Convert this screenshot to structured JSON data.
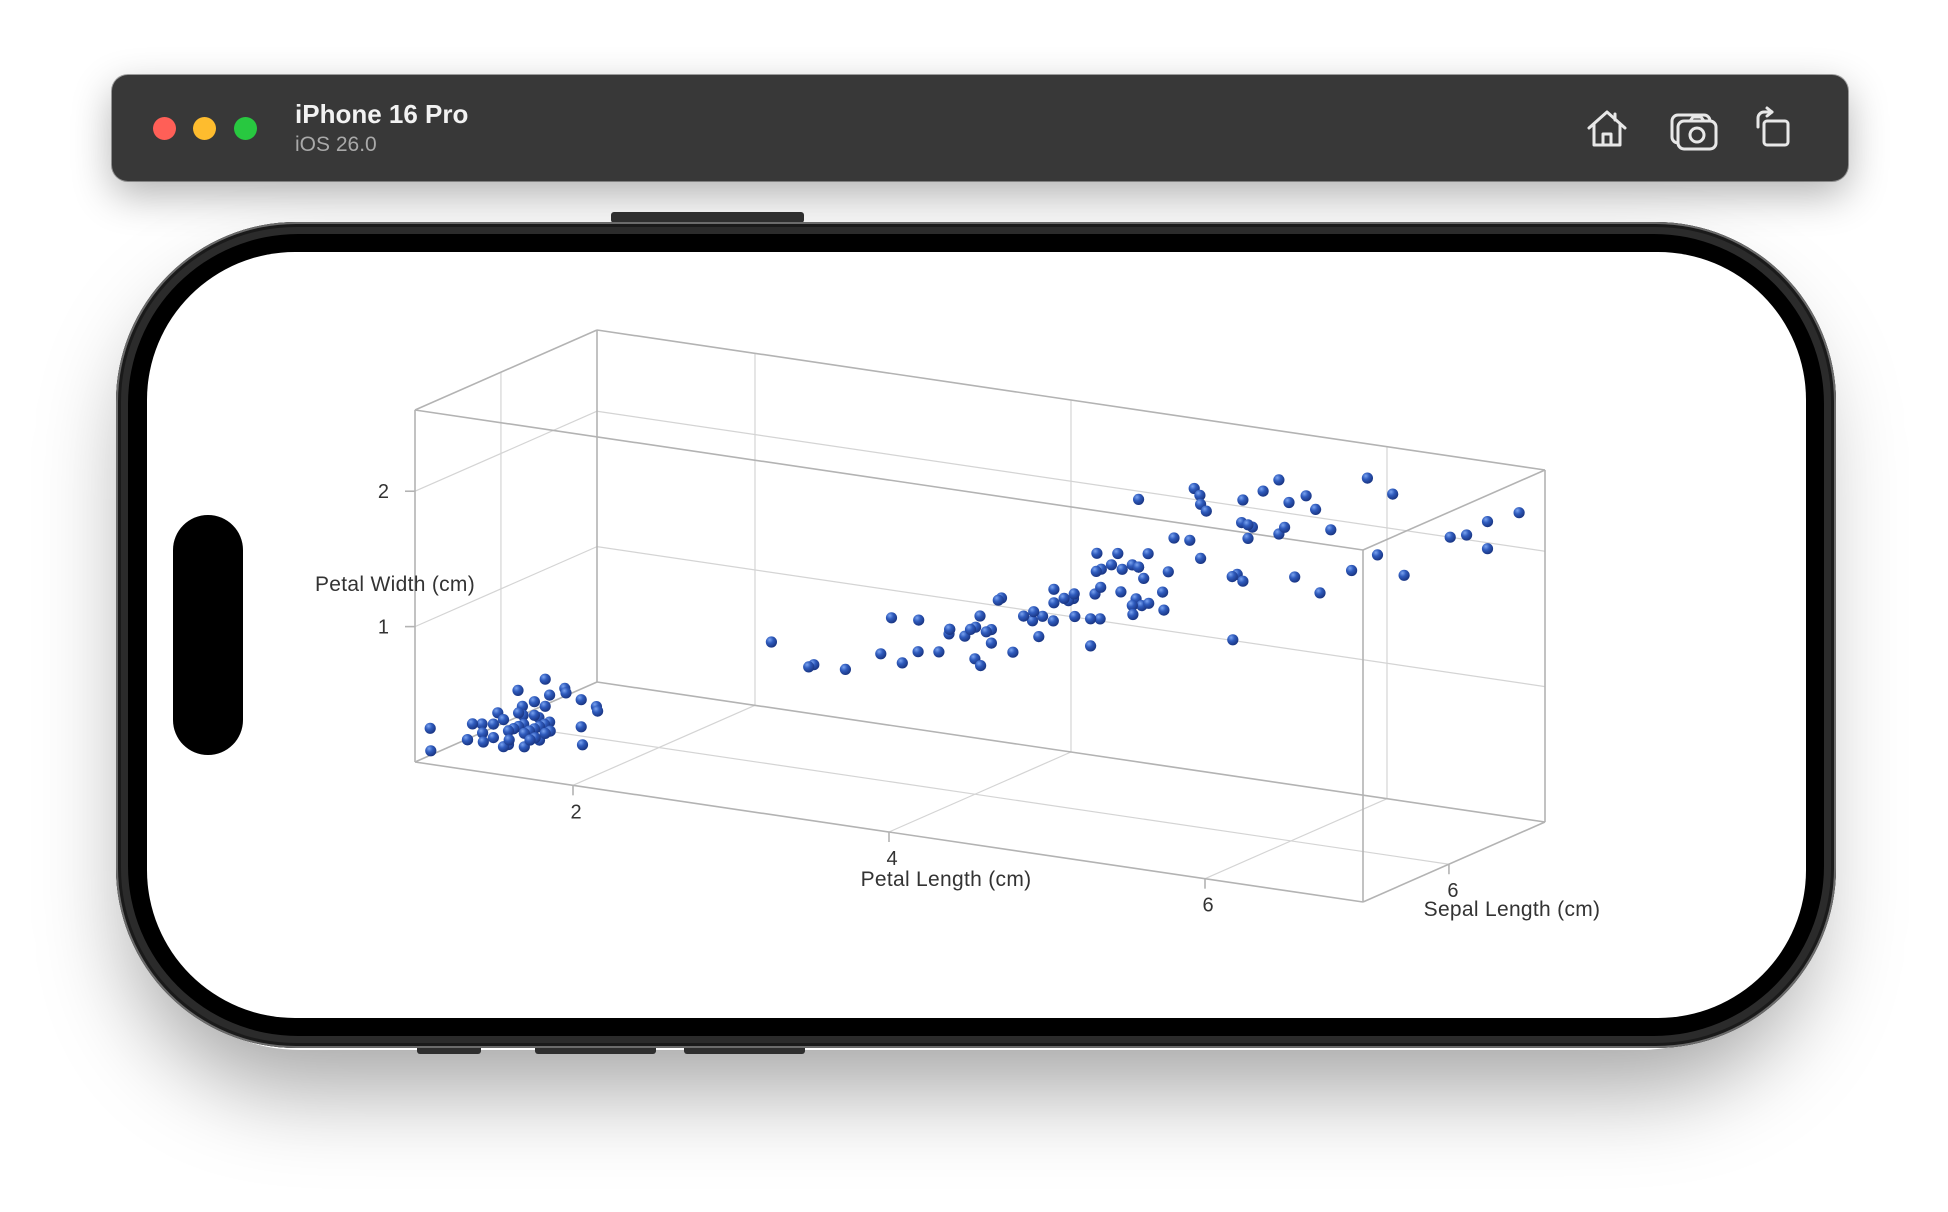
{
  "titlebar": {
    "device_name": "iPhone 16 Pro",
    "os_version": "iOS 26.0",
    "buttons": [
      {
        "name": "home-button",
        "icon": "home-icon"
      },
      {
        "name": "screenshot-button",
        "icon": "camera-icon"
      },
      {
        "name": "rotate-button",
        "icon": "rotate-icon"
      }
    ],
    "traffic_lights": {
      "close": "#ff5f57",
      "minimize": "#febc2e",
      "zoom": "#28c840"
    }
  },
  "chart_data": {
    "type": "scatter",
    "projection": "3d",
    "xlabel": "Petal Length (cm)",
    "ylabel": "Petal Width (cm)",
    "zlabel": "Sepal Length (cm)",
    "x_ticks": [
      2,
      4,
      6
    ],
    "y_ticks": [
      1,
      2
    ],
    "z_ticks": [
      6
    ],
    "xlim": [
      1,
      7
    ],
    "ylim": [
      0,
      2.6
    ],
    "zlim": [
      4.3,
      7.9
    ],
    "grid": true,
    "marker_color": "#2f5bbd",
    "points": [
      [
        1.4,
        0.2,
        5.1
      ],
      [
        1.4,
        0.2,
        4.9
      ],
      [
        1.3,
        0.2,
        4.7
      ],
      [
        1.5,
        0.2,
        4.6
      ],
      [
        1.4,
        0.2,
        5.0
      ],
      [
        1.7,
        0.4,
        5.4
      ],
      [
        1.4,
        0.3,
        4.6
      ],
      [
        1.5,
        0.2,
        5.0
      ],
      [
        1.4,
        0.2,
        4.4
      ],
      [
        1.5,
        0.1,
        4.9
      ],
      [
        1.5,
        0.2,
        5.4
      ],
      [
        1.6,
        0.2,
        4.8
      ],
      [
        1.4,
        0.1,
        4.8
      ],
      [
        1.1,
        0.1,
        4.3
      ],
      [
        1.2,
        0.2,
        5.8
      ],
      [
        1.5,
        0.4,
        5.7
      ],
      [
        1.3,
        0.4,
        5.4
      ],
      [
        1.4,
        0.3,
        5.1
      ],
      [
        1.7,
        0.3,
        5.7
      ],
      [
        1.5,
        0.3,
        5.1
      ],
      [
        1.7,
        0.2,
        5.4
      ],
      [
        1.5,
        0.4,
        5.1
      ],
      [
        1.0,
        0.2,
        4.6
      ],
      [
        1.7,
        0.5,
        5.1
      ],
      [
        1.9,
        0.2,
        4.8
      ],
      [
        1.6,
        0.2,
        5.0
      ],
      [
        1.6,
        0.4,
        5.0
      ],
      [
        1.5,
        0.2,
        5.2
      ],
      [
        1.4,
        0.2,
        5.2
      ],
      [
        1.6,
        0.2,
        4.7
      ],
      [
        1.6,
        0.2,
        4.8
      ],
      [
        1.5,
        0.4,
        5.4
      ],
      [
        1.5,
        0.1,
        5.2
      ],
      [
        1.4,
        0.2,
        5.5
      ],
      [
        1.5,
        0.2,
        4.9
      ],
      [
        1.2,
        0.2,
        5.0
      ],
      [
        1.3,
        0.2,
        5.5
      ],
      [
        1.4,
        0.1,
        4.9
      ],
      [
        1.3,
        0.2,
        4.4
      ],
      [
        1.5,
        0.2,
        5.1
      ],
      [
        1.3,
        0.3,
        5.0
      ],
      [
        1.3,
        0.3,
        4.5
      ],
      [
        1.3,
        0.2,
        4.4
      ],
      [
        1.6,
        0.6,
        5.0
      ],
      [
        1.9,
        0.4,
        5.1
      ],
      [
        1.4,
        0.3,
        4.8
      ],
      [
        1.6,
        0.2,
        5.1
      ],
      [
        1.4,
        0.2,
        4.6
      ],
      [
        1.5,
        0.2,
        5.3
      ],
      [
        1.4,
        0.2,
        5.0
      ],
      [
        4.7,
        1.4,
        7.0
      ],
      [
        4.5,
        1.5,
        6.4
      ],
      [
        4.9,
        1.5,
        6.9
      ],
      [
        4.0,
        1.3,
        5.5
      ],
      [
        4.6,
        1.5,
        6.5
      ],
      [
        4.5,
        1.3,
        5.7
      ],
      [
        4.7,
        1.6,
        6.3
      ],
      [
        3.3,
        1.0,
        4.9
      ],
      [
        4.6,
        1.3,
        6.6
      ],
      [
        3.9,
        1.4,
        5.2
      ],
      [
        3.5,
        1.0,
        5.0
      ],
      [
        4.2,
        1.5,
        5.9
      ],
      [
        4.0,
        1.0,
        6.0
      ],
      [
        4.7,
        1.4,
        6.1
      ],
      [
        3.6,
        1.3,
        5.6
      ],
      [
        4.4,
        1.4,
        6.7
      ],
      [
        4.5,
        1.5,
        5.6
      ],
      [
        4.1,
        1.0,
        5.8
      ],
      [
        4.5,
        1.5,
        6.2
      ],
      [
        3.9,
        1.1,
        5.6
      ],
      [
        4.8,
        1.8,
        5.9
      ],
      [
        4.0,
        1.3,
        6.1
      ],
      [
        4.9,
        1.5,
        6.3
      ],
      [
        4.7,
        1.2,
        6.1
      ],
      [
        4.3,
        1.3,
        6.4
      ],
      [
        4.4,
        1.4,
        6.6
      ],
      [
        4.8,
        1.4,
        6.8
      ],
      [
        5.0,
        1.7,
        6.7
      ],
      [
        4.5,
        1.5,
        6.0
      ],
      [
        3.5,
        1.0,
        5.7
      ],
      [
        3.8,
        1.1,
        5.5
      ],
      [
        3.7,
        1.0,
        5.5
      ],
      [
        3.9,
        1.2,
        5.8
      ],
      [
        5.1,
        1.6,
        6.0
      ],
      [
        4.5,
        1.5,
        5.4
      ],
      [
        4.5,
        1.6,
        6.0
      ],
      [
        4.7,
        1.5,
        6.7
      ],
      [
        4.4,
        1.3,
        6.3
      ],
      [
        4.1,
        1.3,
        5.6
      ],
      [
        4.0,
        1.3,
        5.5
      ],
      [
        4.4,
        1.2,
        5.5
      ],
      [
        4.6,
        1.4,
        6.1
      ],
      [
        4.0,
        1.2,
        5.8
      ],
      [
        3.3,
        1.0,
        5.0
      ],
      [
        4.2,
        1.3,
        5.6
      ],
      [
        4.2,
        1.2,
        5.7
      ],
      [
        4.2,
        1.3,
        5.7
      ],
      [
        4.3,
        1.3,
        6.2
      ],
      [
        3.0,
        1.1,
        5.1
      ],
      [
        4.1,
        1.3,
        5.7
      ],
      [
        6.0,
        2.5,
        6.3
      ],
      [
        5.1,
        1.9,
        5.8
      ],
      [
        5.9,
        2.1,
        7.1
      ],
      [
        5.6,
        1.8,
        6.3
      ],
      [
        5.8,
        2.2,
        6.5
      ],
      [
        6.6,
        2.1,
        7.6
      ],
      [
        4.5,
        1.7,
        4.9
      ],
      [
        6.3,
        1.8,
        7.3
      ],
      [
        5.8,
        1.8,
        6.7
      ],
      [
        6.1,
        2.5,
        7.2
      ],
      [
        5.1,
        2.0,
        6.5
      ],
      [
        5.3,
        1.9,
        6.4
      ],
      [
        5.5,
        2.1,
        6.8
      ],
      [
        5.0,
        2.0,
        5.7
      ],
      [
        5.1,
        2.4,
        5.8
      ],
      [
        5.3,
        2.3,
        6.4
      ],
      [
        5.5,
        1.8,
        6.5
      ],
      [
        6.7,
        2.2,
        7.7
      ],
      [
        6.9,
        2.3,
        7.7
      ],
      [
        5.0,
        1.5,
        6.0
      ],
      [
        5.7,
        2.3,
        6.9
      ],
      [
        4.9,
        2.0,
        5.6
      ],
      [
        6.7,
        2.0,
        7.7
      ],
      [
        4.9,
        1.8,
        6.3
      ],
      [
        5.7,
        2.1,
        6.7
      ],
      [
        6.0,
        1.8,
        7.2
      ],
      [
        4.8,
        1.8,
        6.2
      ],
      [
        4.9,
        1.8,
        6.1
      ],
      [
        5.6,
        2.1,
        6.4
      ],
      [
        5.8,
        1.6,
        7.2
      ],
      [
        6.1,
        1.9,
        7.4
      ],
      [
        6.4,
        2.0,
        7.9
      ],
      [
        5.6,
        2.2,
        6.4
      ],
      [
        5.1,
        1.5,
        6.3
      ],
      [
        5.6,
        1.4,
        6.1
      ],
      [
        6.1,
        2.3,
        7.7
      ],
      [
        5.6,
        2.4,
        6.3
      ],
      [
        5.5,
        1.8,
        6.4
      ],
      [
        4.8,
        1.8,
        6.0
      ],
      [
        5.4,
        2.1,
        6.9
      ],
      [
        5.6,
        2.4,
        6.7
      ],
      [
        5.1,
        2.3,
        6.9
      ],
      [
        5.1,
        1.9,
        5.8
      ],
      [
        5.9,
        2.3,
        6.8
      ],
      [
        5.7,
        2.5,
        6.7
      ],
      [
        5.2,
        2.3,
        6.7
      ],
      [
        5.0,
        1.9,
        6.3
      ],
      [
        5.2,
        2.0,
        6.5
      ],
      [
        5.4,
        2.3,
        6.2
      ],
      [
        5.1,
        1.8,
        5.9
      ]
    ]
  }
}
